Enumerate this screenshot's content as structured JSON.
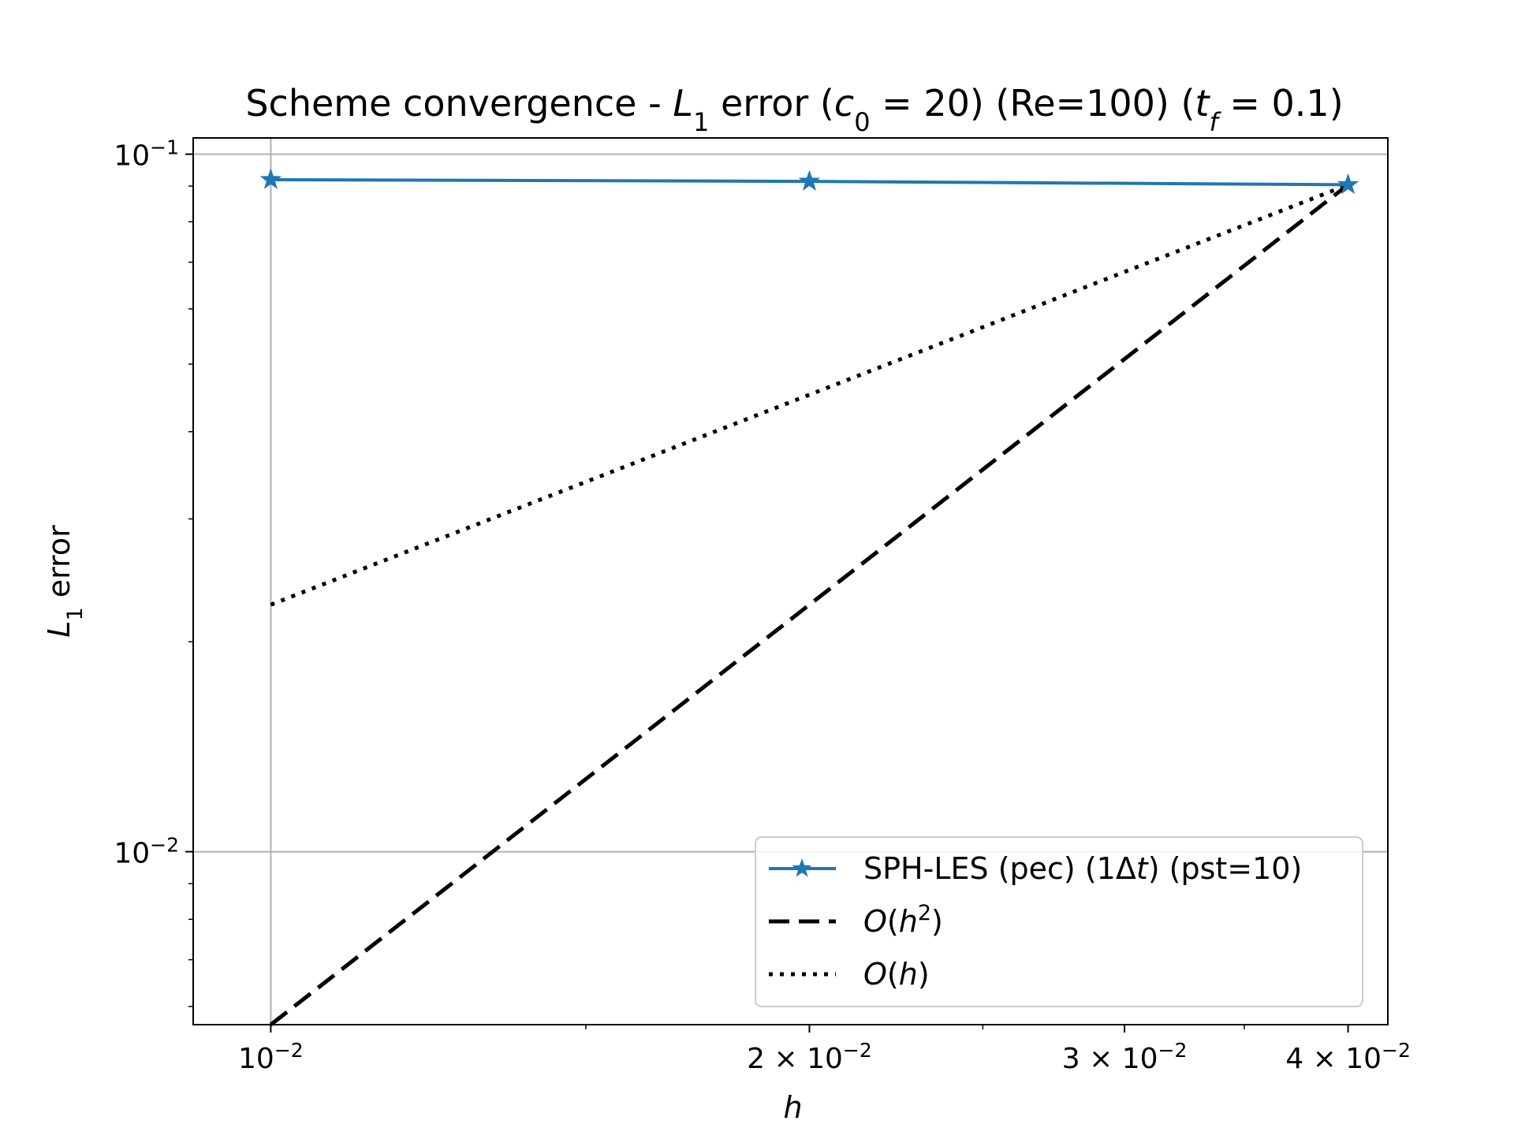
{
  "chart_data": {
    "type": "line",
    "title": "Scheme convergence - L₁ error (c₀ = 20) (Re=100) (t_f = 0.1)",
    "title_parts": [
      {
        "text": "Scheme convergence - ",
        "style": "normal"
      },
      {
        "text": "L",
        "style": "italic"
      },
      {
        "text": "1",
        "style": "sub"
      },
      {
        "text": " error (",
        "style": "normal"
      },
      {
        "text": "c",
        "style": "italic"
      },
      {
        "text": "0",
        "style": "sub"
      },
      {
        "text": " = 20) (Re=100) (",
        "style": "normal"
      },
      {
        "text": "t",
        "style": "italic"
      },
      {
        "text": "f",
        "style": "subitalic"
      },
      {
        "text": " = 0.1)",
        "style": "normal"
      }
    ],
    "xlabel": "h",
    "ylabel": "L₁ error",
    "x_scale": "log",
    "y_scale": "log",
    "xlim": [
      0.00905,
      0.0421
    ],
    "ylim": [
      0.00565,
      0.1055
    ],
    "grid": true,
    "legend_position": "lower right",
    "x_major_ticks": [
      {
        "value": 0.01,
        "mantissa": "",
        "exponent": "−2"
      },
      {
        "value": 0.02,
        "mantissa": "2 × ",
        "exponent": "−2"
      },
      {
        "value": 0.03,
        "mantissa": "3 × ",
        "exponent": "−2"
      },
      {
        "value": 0.04,
        "mantissa": "4 × ",
        "exponent": "−2"
      }
    ],
    "y_major_ticks": [
      {
        "value": 0.1,
        "exponent": "−1"
      },
      {
        "value": 0.01,
        "exponent": "−2"
      }
    ],
    "series": [
      {
        "name": "SPH-LES (pec) (1Δt) (pst=10)",
        "legend_parts": [
          {
            "text": "SPH-LES (pec) (1Δ",
            "style": "normal"
          },
          {
            "text": "t",
            "style": "italic"
          },
          {
            "text": ") (pst=10)",
            "style": "normal"
          }
        ],
        "x": [
          0.01,
          0.02,
          0.04
        ],
        "y": [
          0.0919,
          0.0914,
          0.0904
        ],
        "color": "#1f77b4",
        "linestyle": "solid",
        "marker": "star"
      },
      {
        "name": "O(h²)",
        "legend_parts": [
          {
            "text": "O",
            "style": "italic"
          },
          {
            "text": "(",
            "style": "normal"
          },
          {
            "text": "h",
            "style": "italic"
          },
          {
            "text": "2",
            "style": "sup"
          },
          {
            "text": ")",
            "style": "normal"
          }
        ],
        "x": [
          0.01,
          0.04
        ],
        "y": [
          0.00565,
          0.0904
        ],
        "color": "#000000",
        "linestyle": "dashed",
        "marker": "none"
      },
      {
        "name": "O(h)",
        "legend_parts": [
          {
            "text": "O",
            "style": "italic"
          },
          {
            "text": "(",
            "style": "normal"
          },
          {
            "text": "h",
            "style": "italic"
          },
          {
            "text": ")",
            "style": "normal"
          }
        ],
        "x": [
          0.01,
          0.04
        ],
        "y": [
          0.0226,
          0.0904
        ],
        "color": "#000000",
        "linestyle": "dotted",
        "marker": "none"
      }
    ]
  }
}
